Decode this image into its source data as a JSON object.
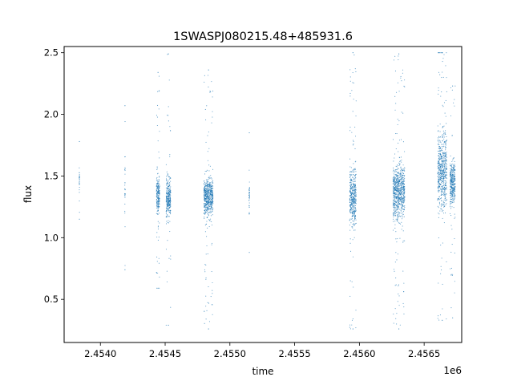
{
  "chart_data": {
    "type": "scatter",
    "title": "1SWASPJ080215.48+485931.6",
    "xlabel": "time",
    "ylabel": "flux",
    "x_offset_label": "1e6",
    "x_tick_labels": [
      "2.4540",
      "2.4545",
      "2.4550",
      "2.4555",
      "2.4560",
      "2.4565"
    ],
    "y_tick_labels": [
      "0.5",
      "1.0",
      "1.5",
      "2.0",
      "2.5"
    ],
    "xlim": [
      2453720,
      2456790
    ],
    "ylim": [
      0.15,
      2.55
    ],
    "grid": false,
    "marker_color": "#1f77b4",
    "clusters": [
      {
        "t": 2453838,
        "width": 2,
        "median": 1.45,
        "spread": 0.12,
        "min": 1.15,
        "max": 1.78
      },
      {
        "t": 2454190,
        "width": 3,
        "median": 1.4,
        "spread": 0.2,
        "min": 0.74,
        "max": 2.07
      },
      {
        "t": 2454445,
        "width": 25,
        "median": 1.35,
        "spread": 0.13,
        "min": 0.59,
        "max": 2.34
      },
      {
        "t": 2454525,
        "width": 35,
        "median": 1.32,
        "spread": 0.14,
        "min": 0.29,
        "max": 2.49
      },
      {
        "t": 2454835,
        "width": 70,
        "median": 1.33,
        "spread": 0.14,
        "min": 0.26,
        "max": 2.36
      },
      {
        "t": 2455150,
        "width": 4,
        "median": 1.33,
        "spread": 0.14,
        "min": 0.88,
        "max": 1.85
      },
      {
        "t": 2455950,
        "width": 50,
        "median": 1.33,
        "spread": 0.2,
        "min": 0.26,
        "max": 2.5
      },
      {
        "t": 2456305,
        "width": 90,
        "median": 1.38,
        "spread": 0.2,
        "min": 0.26,
        "max": 2.49
      },
      {
        "t": 2456640,
        "width": 70,
        "median": 1.55,
        "spread": 0.26,
        "min": 0.33,
        "max": 2.5
      },
      {
        "t": 2456720,
        "width": 40,
        "median": 1.45,
        "spread": 0.16,
        "min": 0.35,
        "max": 2.23
      }
    ]
  }
}
